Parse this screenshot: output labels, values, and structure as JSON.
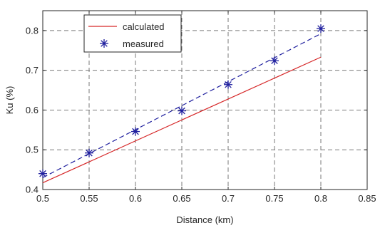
{
  "chart_data": {
    "type": "line",
    "title": "",
    "xlabel": "Distance (km)",
    "ylabel": "Ku (%)",
    "xlim": [
      0.5,
      0.85
    ],
    "ylim": [
      0.4,
      0.85
    ],
    "xticks": [
      "0.5",
      "0.55",
      "0.6",
      "0.65",
      "0.7",
      "0.75",
      "0.8",
      "0.85"
    ],
    "yticks": [
      "0.4",
      "0.5",
      "0.6",
      "0.7",
      "0.8"
    ],
    "grid": true,
    "legend_position": "top-left",
    "series": [
      {
        "name": "calculated",
        "style": "solid line",
        "color": "#d62728",
        "x": [
          0.5,
          0.8
        ],
        "y": [
          0.417,
          0.733
        ]
      },
      {
        "name": "measured",
        "style": "dashed line with star markers",
        "color": "#1f1f9e",
        "x": [
          0.5,
          0.55,
          0.6,
          0.65,
          0.7,
          0.75,
          0.8
        ],
        "y": [
          0.44,
          0.492,
          0.546,
          0.598,
          0.664,
          0.724,
          0.805
        ],
        "fit_x": [
          0.5,
          0.8
        ],
        "fit_y": [
          0.43,
          0.792
        ]
      }
    ]
  }
}
